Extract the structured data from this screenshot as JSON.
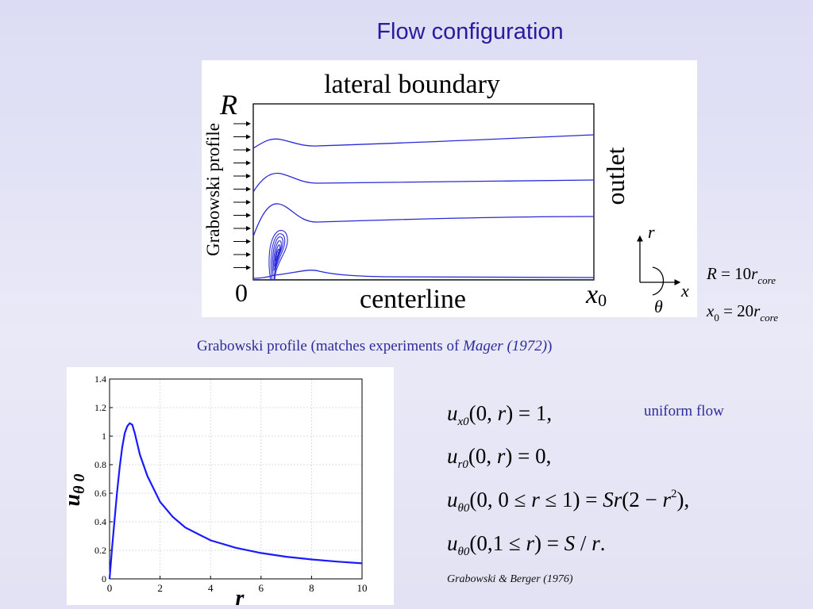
{
  "slide": {
    "title": "Flow configuration"
  },
  "flow_diagram": {
    "top_label": "lateral boundary",
    "radius_label": "R",
    "inlet_label": "Grabowski profile",
    "outlet_label": "outlet",
    "origin_label": "0",
    "bottom_label": "centerline",
    "end_label": "x",
    "end_label_sub": "0",
    "axes": {
      "r": "r",
      "x": "x",
      "theta": "θ"
    },
    "line_color": "#1f1fd6"
  },
  "params": {
    "R": {
      "lhs": "R",
      "eq": " = 10",
      "var": "r",
      "sub": "core"
    },
    "x0": {
      "lhs": "x",
      "lhs_sub": "0",
      "eq": " = 20",
      "var": "r",
      "sub": "core"
    }
  },
  "caption": {
    "text_start": "Grabowski profile (matches experiments of ",
    "italic": "Mager (1972)",
    "text_end": ")"
  },
  "chart_data": {
    "type": "line",
    "xlabel": "r",
    "ylabel": "u",
    "ylabel_sub": "θ 0",
    "xlim": [
      0,
      10
    ],
    "ylim": [
      0,
      1.4
    ],
    "xticks": [
      "0",
      "2",
      "4",
      "6",
      "8",
      "10"
    ],
    "yticks": [
      "0",
      "0.2",
      "0.4",
      "0.6",
      "0.8",
      "1",
      "1.2",
      "1.4"
    ],
    "grid": true,
    "series": [
      {
        "color": "#1a1aff",
        "x": [
          0,
          0.1,
          0.2,
          0.3,
          0.4,
          0.5,
          0.6,
          0.7,
          0.8,
          0.9,
          1.0,
          1.2,
          1.5,
          2.0,
          2.5,
          3.0,
          4.0,
          5.0,
          6.0,
          7.0,
          8.0,
          9.0,
          10.0
        ],
        "y": [
          0,
          0.22,
          0.42,
          0.61,
          0.78,
          0.92,
          1.02,
          1.07,
          1.09,
          1.08,
          1.02,
          0.87,
          0.72,
          0.54,
          0.435,
          0.36,
          0.27,
          0.218,
          0.181,
          0.155,
          0.136,
          0.121,
          0.109
        ]
      }
    ]
  },
  "equations": {
    "eq1": {
      "u": "u",
      "sub": "x0",
      "body": "(0, ",
      "r": "r",
      "rest": ") = 1,"
    },
    "eq2": {
      "u": "u",
      "sub": "r0",
      "body": "(0, ",
      "r": "r",
      "rest": ") = 0,"
    },
    "eq3": {
      "u": "u",
      "sub": "θ0",
      "body": "(0, 0 ≤ ",
      "r": "r",
      "rest": " ≤ 1) = ",
      "S": "Sr",
      "tail": "(2 − ",
      "r2": "r",
      "sup": "2",
      "end": "),"
    },
    "eq4": {
      "u": "u",
      "sub": "θ0",
      "body": "(0,1 ≤ ",
      "r": "r",
      "rest": ") = ",
      "S": "S",
      "tail": " / ",
      "r2": "r",
      "end": "."
    },
    "note": "uniform flow",
    "reference": "Grabowski & Berger (1976)"
  }
}
